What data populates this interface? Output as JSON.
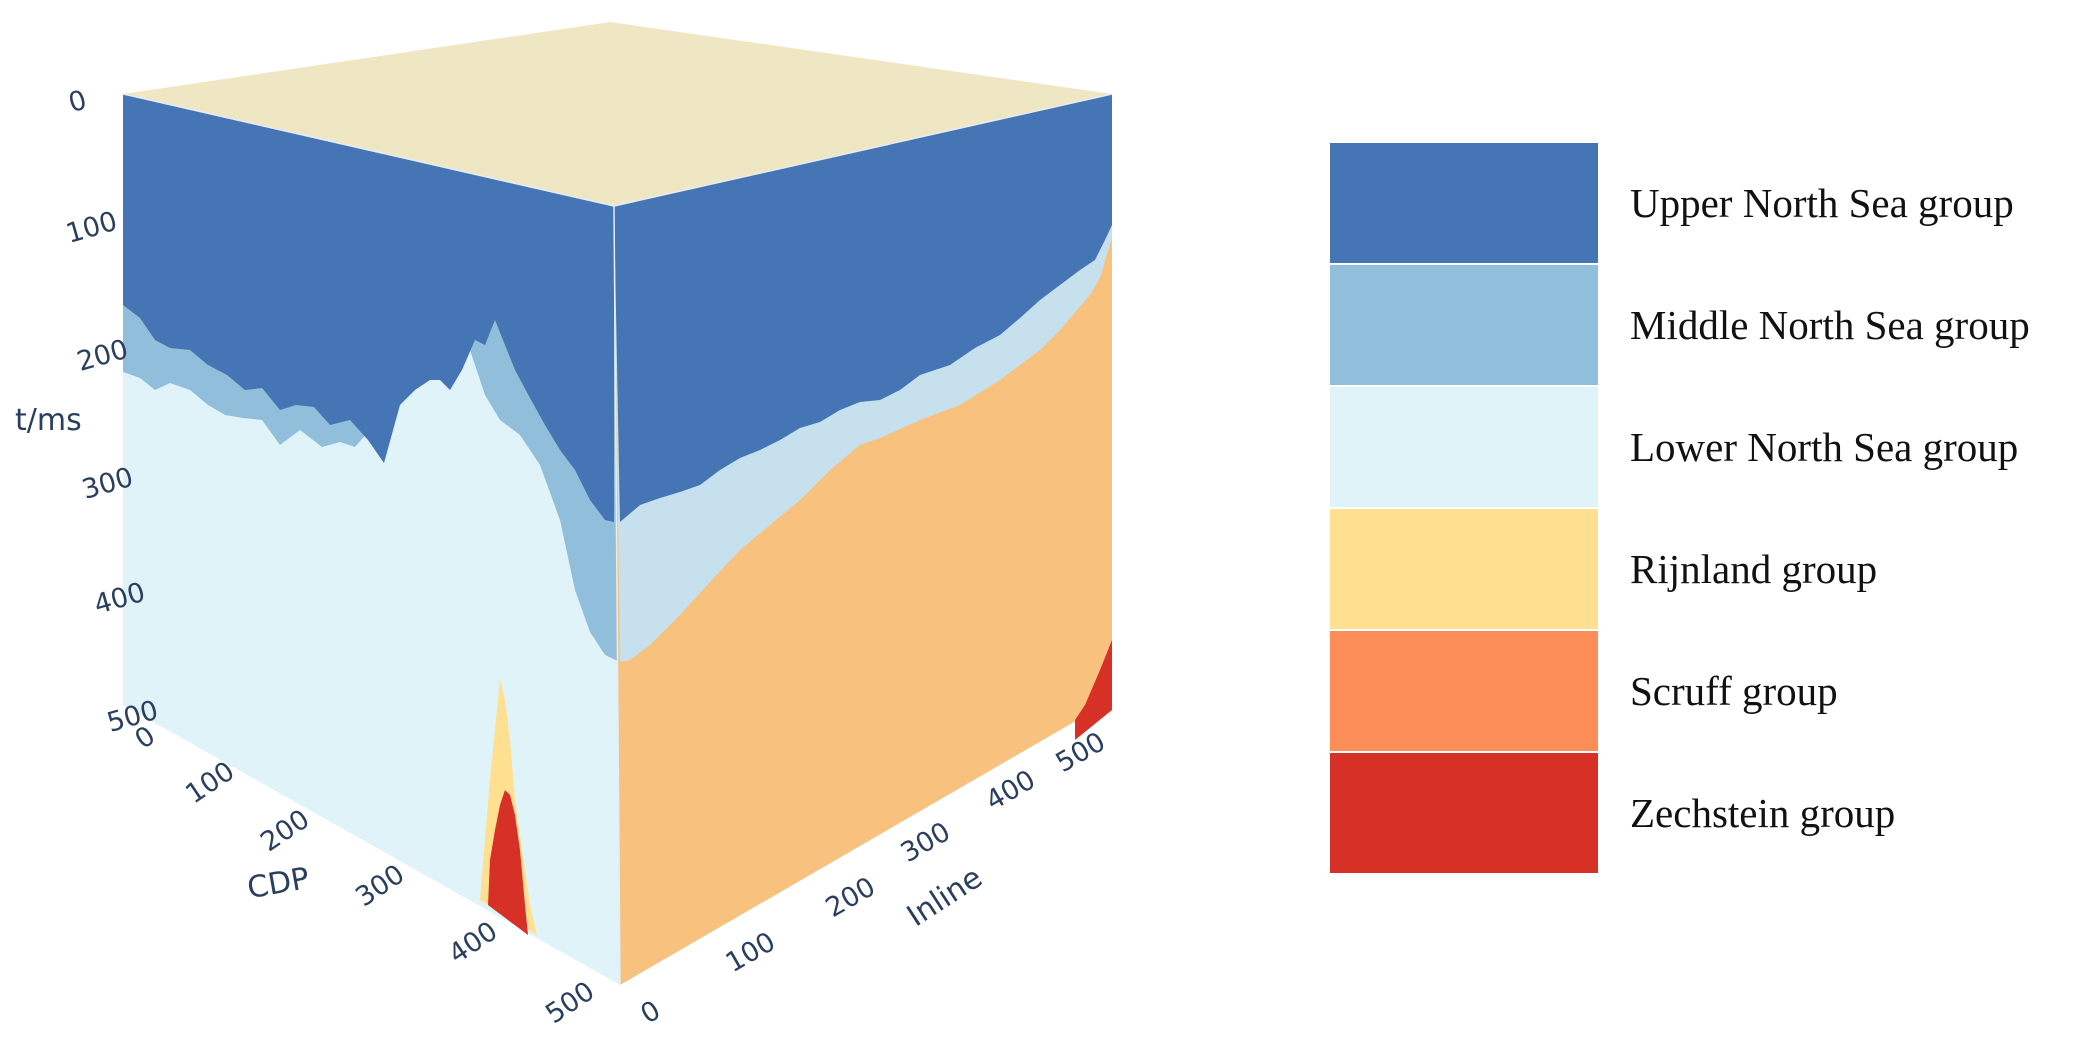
{
  "axes": {
    "t": {
      "title": "t/ms",
      "ticks": [
        "0",
        "100",
        "200",
        "300",
        "400",
        "500"
      ]
    },
    "cdp": {
      "title": "CDP",
      "ticks": [
        "0",
        "100",
        "200",
        "300",
        "400",
        "500"
      ]
    },
    "inline": {
      "title": "Inline",
      "ticks": [
        "0",
        "100",
        "200",
        "300",
        "400",
        "500"
      ]
    }
  },
  "legend": [
    {
      "label": "Upper North Sea group",
      "color": "#4575b4"
    },
    {
      "label": "Middle North Sea group",
      "color": "#91bfdb"
    },
    {
      "label": "Lower North Sea group",
      "color": "#e0f3f8"
    },
    {
      "label": "Rijnland group",
      "color": "#fee090"
    },
    {
      "label": "Scruff group",
      "color": "#fc8d59"
    },
    {
      "label": "Zechstein group",
      "color": "#d73027"
    }
  ],
  "faces": {
    "top_color": "#efe6c3",
    "right_lower_north_sea_color": "#c6e1ed",
    "right_rijnland_color": "#f8c27e"
  }
}
